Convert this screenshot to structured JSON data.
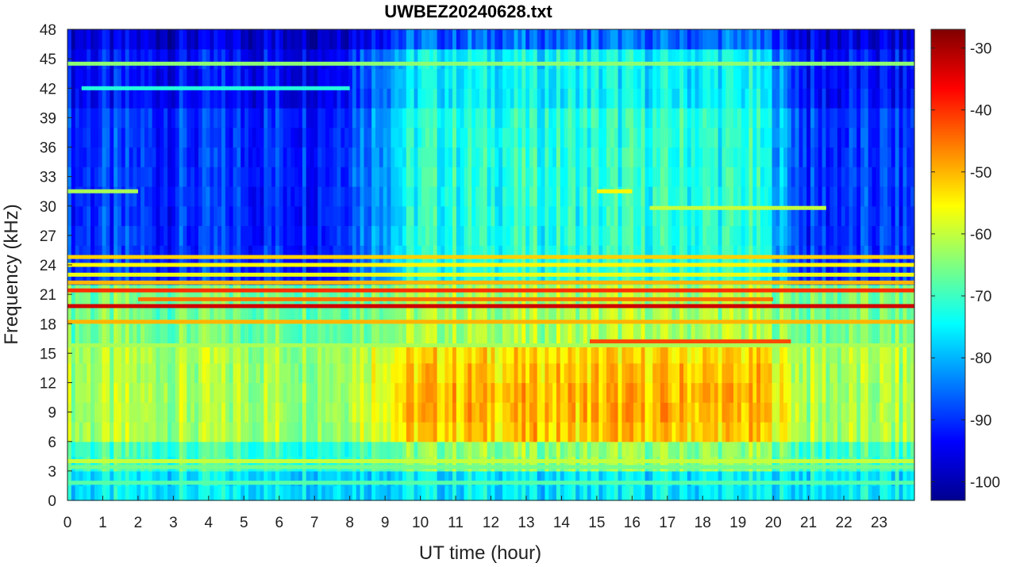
{
  "chart_data": {
    "type": "heatmap",
    "title": "UWBEZ20240628.txt",
    "xlabel": "UT time (hour)",
    "ylabel": "Frequency (kHz)",
    "xlim": [
      0,
      24
    ],
    "ylim": [
      0,
      48
    ],
    "x_ticks": [
      "0",
      "1",
      "2",
      "3",
      "4",
      "5",
      "6",
      "7",
      "8",
      "9",
      "10",
      "11",
      "12",
      "13",
      "14",
      "15",
      "16",
      "17",
      "18",
      "19",
      "20",
      "21",
      "22",
      "23"
    ],
    "y_ticks": [
      "0",
      "3",
      "6",
      "9",
      "12",
      "15",
      "18",
      "21",
      "24",
      "27",
      "30",
      "33",
      "36",
      "39",
      "42",
      "45",
      "48"
    ],
    "colorbar": {
      "colormap": "jet",
      "range": [
        -103,
        -27
      ],
      "ticks": [
        "-30",
        "-40",
        "-50",
        "-60",
        "-70",
        "-80",
        "-90",
        "-100"
      ]
    },
    "background_level_db": {
      "description_levels": "approximate dB levels by frequency band and time",
      "night_hours": [
        0,
        8
      ],
      "day_hours": [
        8,
        21
      ],
      "low_freq_0_3_khz": -76,
      "vlf_6_15_khz_night": -62,
      "vlf_6_15_khz_day_peak": -50,
      "mid_22_45_khz_night": -90,
      "mid_22_45_khz_day": -72
    },
    "narrowband_lines": [
      {
        "freq_khz": 19.8,
        "level_db": -33,
        "t_start": 0,
        "t_end": 24
      },
      {
        "freq_khz": 21.4,
        "level_db": -40,
        "t_start": 0,
        "t_end": 24
      },
      {
        "freq_khz": 18.2,
        "level_db": -50,
        "t_start": 0,
        "t_end": 24
      },
      {
        "freq_khz": 20.5,
        "level_db": -45,
        "t_start": 2,
        "t_end": 20
      },
      {
        "freq_khz": 22.2,
        "level_db": -50,
        "t_start": 0,
        "t_end": 24
      },
      {
        "freq_khz": 23.0,
        "level_db": -57,
        "t_start": 0,
        "t_end": 24
      },
      {
        "freq_khz": 24.0,
        "level_db": -55,
        "t_start": 0,
        "t_end": 24
      },
      {
        "freq_khz": 24.8,
        "level_db": -52,
        "t_start": 0,
        "t_end": 24
      },
      {
        "freq_khz": 16.2,
        "level_db": -42,
        "t_start": 14.8,
        "t_end": 20.5
      },
      {
        "freq_khz": 15.8,
        "level_db": -62,
        "t_start": 0,
        "t_end": 24
      },
      {
        "freq_khz": 4.0,
        "level_db": -60,
        "t_start": 0,
        "t_end": 24
      },
      {
        "freq_khz": 3.4,
        "level_db": -66,
        "t_start": 0,
        "t_end": 24
      },
      {
        "freq_khz": 1.8,
        "level_db": -68,
        "t_start": 0,
        "t_end": 24
      },
      {
        "freq_khz": 31.5,
        "level_db": -62,
        "t_start": 0,
        "t_end": 2
      },
      {
        "freq_khz": 31.5,
        "level_db": -55,
        "t_start": 15,
        "t_end": 16
      },
      {
        "freq_khz": 29.8,
        "level_db": -60,
        "t_start": 16.5,
        "t_end": 21.5
      },
      {
        "freq_khz": 44.5,
        "level_db": -64,
        "t_start": 0,
        "t_end": 24
      },
      {
        "freq_khz": 42.0,
        "level_db": -72,
        "t_start": 0.4,
        "t_end": 8
      }
    ]
  }
}
